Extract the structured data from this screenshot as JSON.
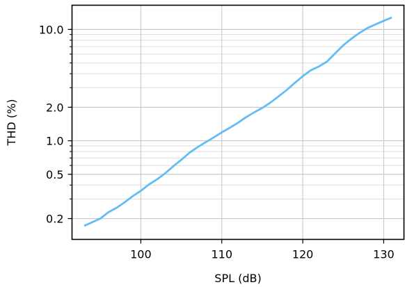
{
  "chart_data": {
    "type": "line",
    "title": "",
    "xlabel": "SPL (dB)",
    "ylabel": "THD (%)",
    "xscale": "linear",
    "yscale": "log",
    "xlim": [
      91.5,
      132.5
    ],
    "ylim": [
      0.13,
      16.5
    ],
    "grid": true,
    "legend": "none",
    "x_ticks": [
      100,
      110,
      120,
      130
    ],
    "x_tick_labels": [
      "100",
      "110",
      "120",
      "130"
    ],
    "y_ticks": [
      0.2,
      0.5,
      1.0,
      2.0,
      10.0
    ],
    "y_tick_labels": [
      "0.2",
      "0.5",
      "1.0",
      "2.0",
      "10.0"
    ],
    "series": [
      {
        "color": "#64bcf5",
        "x": [
          93,
          95,
          96,
          97,
          98,
          99,
          100,
          101,
          102,
          103,
          104,
          105,
          106,
          107,
          108,
          109,
          110,
          111,
          112,
          113,
          114,
          115,
          116,
          117,
          118,
          119,
          120,
          121,
          122,
          123,
          124,
          125,
          126,
          127,
          128,
          129,
          130,
          131
        ],
        "y": [
          0.172,
          0.2,
          0.228,
          0.25,
          0.28,
          0.318,
          0.355,
          0.405,
          0.45,
          0.51,
          0.59,
          0.675,
          0.78,
          0.875,
          0.97,
          1.07,
          1.19,
          1.31,
          1.45,
          1.63,
          1.8,
          1.97,
          2.2,
          2.5,
          2.85,
          3.3,
          3.8,
          4.3,
          4.65,
          5.15,
          6.1,
          7.2,
          8.25,
          9.3,
          10.3,
          11.1,
          11.95,
          12.8
        ]
      }
    ]
  }
}
